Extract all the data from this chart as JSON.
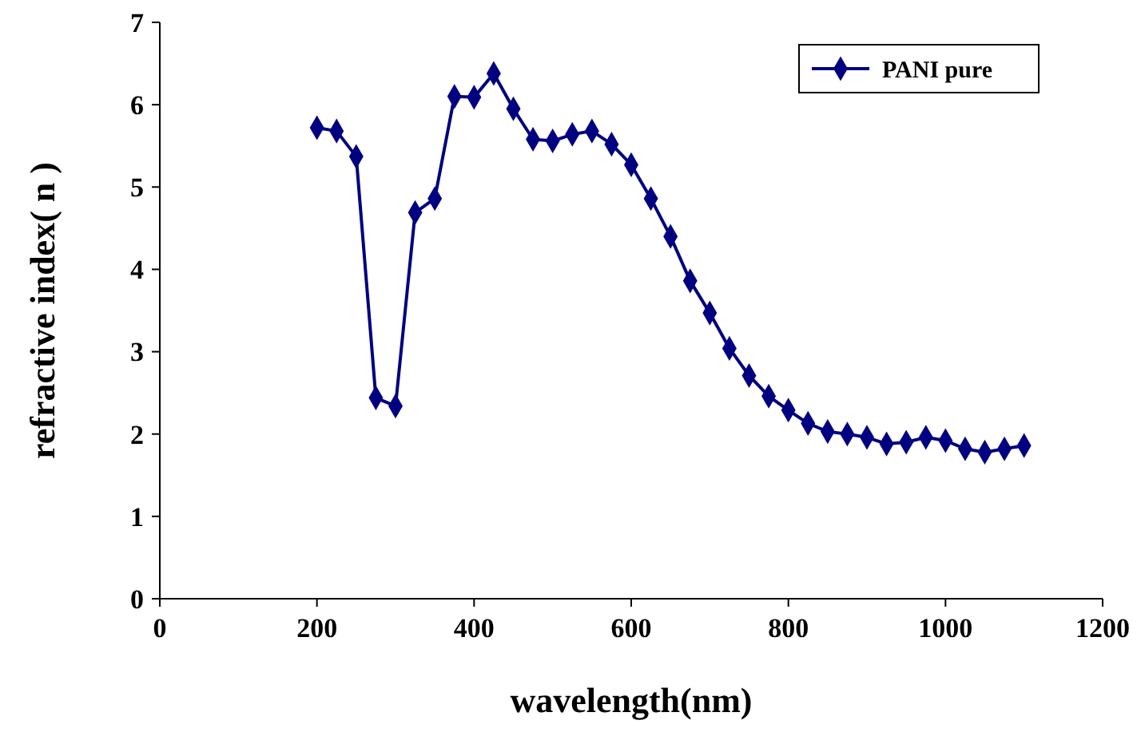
{
  "chart_data": {
    "type": "line",
    "xlabel": "wavelength(nm)",
    "ylabel": "refractive index( n )",
    "x": [
      200,
      225,
      250,
      275,
      300,
      325,
      350,
      375,
      400,
      425,
      450,
      475,
      500,
      525,
      550,
      575,
      600,
      625,
      650,
      675,
      700,
      725,
      750,
      775,
      800,
      825,
      850,
      875,
      900,
      925,
      950,
      975,
      1000,
      1025,
      1050,
      1075,
      1100
    ],
    "series": [
      {
        "name": "PANI pure",
        "color": "#000080",
        "values": [
          5.72,
          5.68,
          5.37,
          2.44,
          2.34,
          4.69,
          4.86,
          6.1,
          6.09,
          6.38,
          5.95,
          5.58,
          5.56,
          5.64,
          5.68,
          5.52,
          5.27,
          4.86,
          4.4,
          3.86,
          3.47,
          3.04,
          2.71,
          2.46,
          2.29,
          2.13,
          2.03,
          2.0,
          1.96,
          1.88,
          1.9,
          1.96,
          1.92,
          1.82,
          1.78,
          1.82,
          1.86
        ]
      }
    ],
    "xlim": [
      0,
      1200
    ],
    "xticks": [
      0,
      200,
      400,
      600,
      800,
      1000,
      1200
    ],
    "ylim": [
      0,
      7
    ],
    "yticks": [
      0,
      1,
      2,
      3,
      4,
      5,
      6,
      7
    ],
    "grid": false,
    "legend": "top right",
    "marker": "diamond",
    "line_style": "solid"
  }
}
